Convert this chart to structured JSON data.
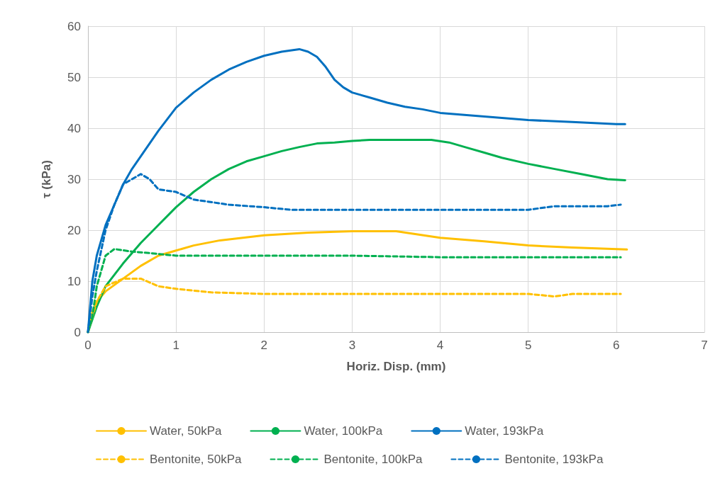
{
  "chart_data": {
    "type": "line",
    "xlabel": "Horiz. Disp. (mm)",
    "ylabel": "τ (kPa)",
    "xlim": [
      0,
      7
    ],
    "xticks": [
      0,
      1,
      2,
      3,
      4,
      5,
      6,
      7
    ],
    "ylim": [
      0,
      60
    ],
    "yticks": [
      0,
      10,
      20,
      30,
      40,
      50,
      60
    ],
    "grid": true,
    "legend": "bottom",
    "marker": "none",
    "series": [
      {
        "name": "Water, 50kPa",
        "color": "#ffc000",
        "line_style": "solid",
        "x": [
          0,
          0.05,
          0.1,
          0.2,
          0.4,
          0.6,
          0.8,
          1,
          1.2,
          1.5,
          2,
          2.5,
          3,
          3.5,
          4,
          4.5,
          5,
          5.5,
          6.12
        ],
        "values": [
          0,
          4,
          6,
          8,
          10.5,
          13,
          15,
          16,
          17,
          18,
          19,
          19.5,
          19.8,
          19.8,
          18.5,
          17.8,
          17,
          16.6,
          16.2
        ]
      },
      {
        "name": "Water, 100kPa",
        "color": "#00b050",
        "line_style": "solid",
        "x": [
          0,
          0.1,
          0.2,
          0.4,
          0.6,
          0.8,
          1,
          1.2,
          1.4,
          1.6,
          1.8,
          2,
          2.2,
          2.4,
          2.6,
          2.8,
          3,
          3.2,
          3.5,
          3.9,
          4.1,
          4.3,
          4.5,
          4.7,
          5,
          5.3,
          5.6,
          5.9,
          6.1
        ],
        "values": [
          0,
          5,
          9,
          13.5,
          17.5,
          21,
          24.5,
          27.5,
          30,
          32,
          33.5,
          34.5,
          35.5,
          36.3,
          37,
          37.2,
          37.5,
          37.7,
          37.7,
          37.7,
          37.2,
          36.2,
          35.2,
          34.2,
          33,
          32,
          31,
          30,
          29.8
        ]
      },
      {
        "name": "Water, 193kPa",
        "color": "#0070c0",
        "line_style": "solid",
        "x": [
          0,
          0.05,
          0.1,
          0.2,
          0.3,
          0.4,
          0.5,
          0.6,
          0.8,
          1,
          1.2,
          1.4,
          1.6,
          1.8,
          2,
          2.2,
          2.4,
          2.5,
          2.6,
          2.7,
          2.8,
          2.9,
          3,
          3.2,
          3.4,
          3.6,
          3.8,
          4,
          4.5,
          5,
          5.5,
          6,
          6.1
        ],
        "values": [
          0,
          10,
          15,
          21,
          25,
          29,
          32,
          34.5,
          39.5,
          44,
          47,
          49.5,
          51.5,
          53,
          54.2,
          55,
          55.5,
          55,
          54,
          52,
          49.5,
          48,
          47,
          46,
          45,
          44.2,
          43.7,
          43,
          42.3,
          41.6,
          41.2,
          40.8,
          40.8
        ]
      },
      {
        "name": "Bentonite, 50kPa",
        "color": "#ffc000",
        "line_style": "dashed",
        "x": [
          0,
          0.1,
          0.2,
          0.4,
          0.6,
          0.8,
          1,
          1.4,
          2,
          3,
          4,
          5,
          5.3,
          5.5,
          6.05
        ],
        "values": [
          0,
          6,
          9,
          10.5,
          10.5,
          9,
          8.5,
          7.8,
          7.5,
          7.5,
          7.5,
          7.5,
          7,
          7.5,
          7.5
        ]
      },
      {
        "name": "Bentonite, 100kPa",
        "color": "#00b050",
        "line_style": "dashed",
        "x": [
          0,
          0.05,
          0.1,
          0.15,
          0.2,
          0.3,
          0.5,
          0.7,
          1,
          2,
          3,
          4,
          5,
          6.05
        ],
        "values": [
          0,
          3,
          9,
          12,
          15,
          16.3,
          15.8,
          15.5,
          15,
          15,
          15,
          14.7,
          14.7,
          14.7
        ]
      },
      {
        "name": "Bentonite, 193kPa",
        "color": "#0070c0",
        "line_style": "dashed",
        "x": [
          0,
          0.05,
          0.1,
          0.2,
          0.3,
          0.4,
          0.6,
          0.7,
          0.8,
          1,
          1.2,
          1.6,
          2,
          2.3,
          3,
          4,
          5,
          5.3,
          5.9,
          6.05
        ],
        "values": [
          0,
          7,
          12,
          20,
          25,
          29,
          31,
          30,
          28,
          27.5,
          26,
          25,
          24.5,
          24,
          24,
          24,
          24,
          24.7,
          24.7,
          25
        ]
      }
    ]
  }
}
